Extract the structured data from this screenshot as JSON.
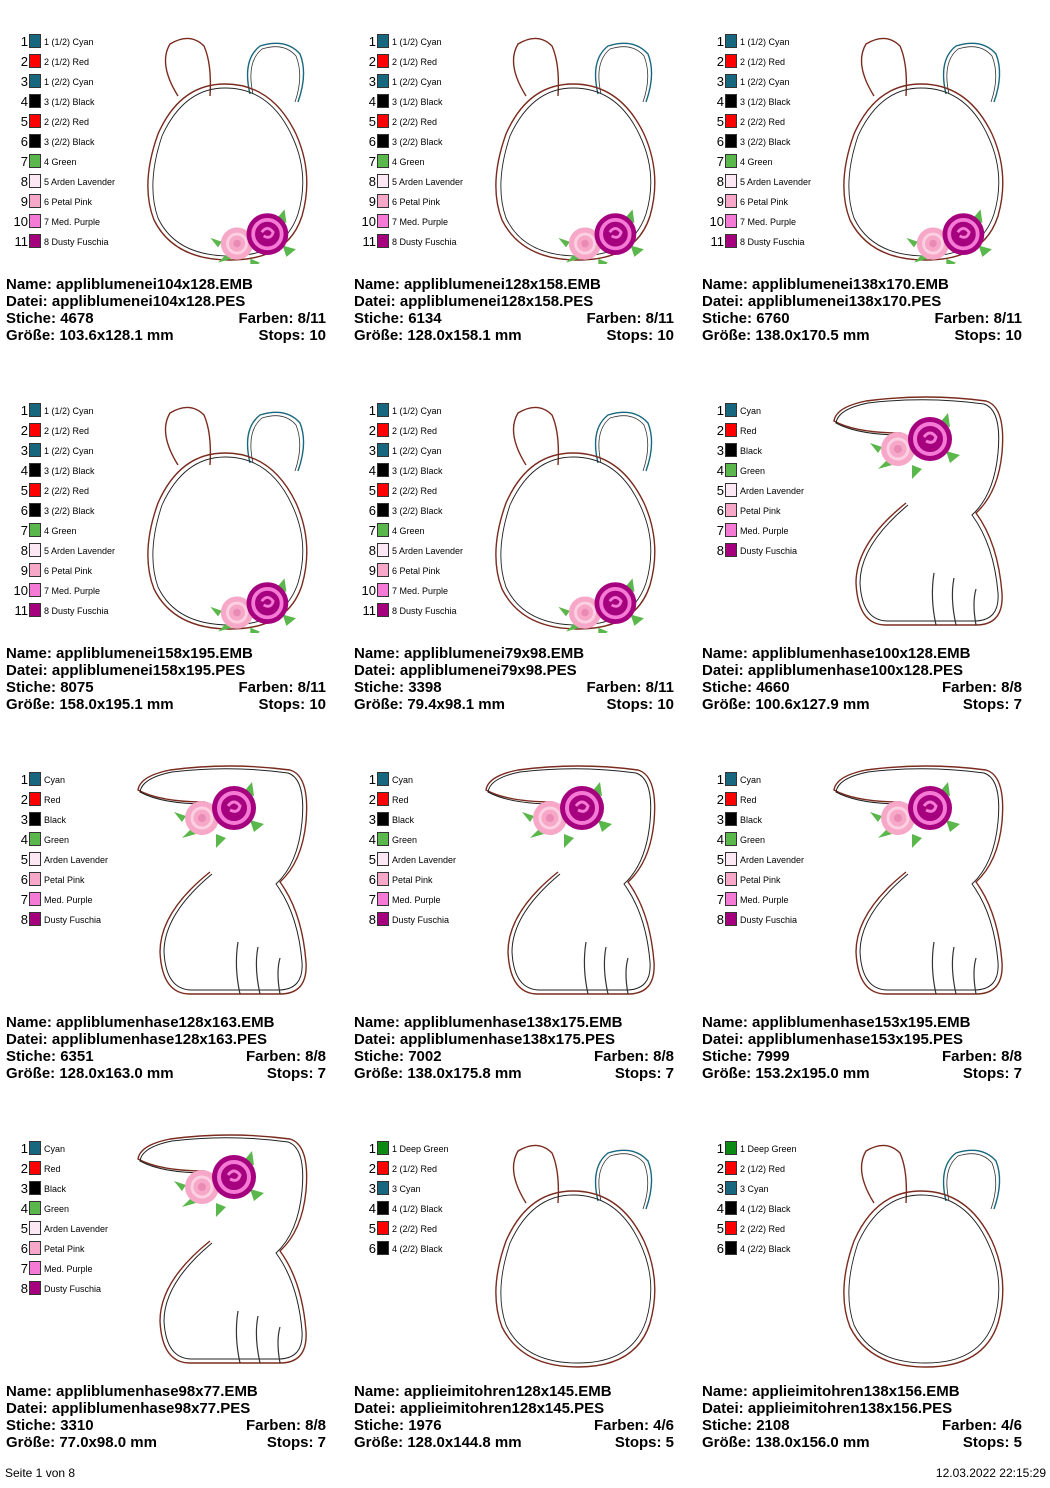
{
  "labels": {
    "name": "Name:",
    "file": "Datei:",
    "stitches": "Stiche:",
    "colors": "Farben:",
    "size": "Größe:",
    "stops": "Stops:"
  },
  "colors": {
    "cyan": "#17687e",
    "red": "#ff0000",
    "black": "#000000",
    "green": "#5ab74b",
    "lavender": "#fbe8f4",
    "pink": "#f7a8c8",
    "purple": "#f47ad6",
    "fuschia": "#a5017f",
    "deepgreen": "#0d8a14"
  },
  "designs": [
    {
      "type": "egg-flower",
      "legend": [
        {
          "n": "1",
          "label": "1 (1/2) Cyan",
          "color": "cyan"
        },
        {
          "n": "2",
          "label": "2 (1/2) Red",
          "color": "red"
        },
        {
          "n": "3",
          "label": "1 (2/2) Cyan",
          "color": "cyan"
        },
        {
          "n": "4",
          "label": "3 (1/2) Black",
          "color": "black"
        },
        {
          "n": "5",
          "label": "2 (2/2) Red",
          "color": "red"
        },
        {
          "n": "6",
          "label": "3 (2/2) Black",
          "color": "black"
        },
        {
          "n": "7",
          "label": "4 Green",
          "color": "green"
        },
        {
          "n": "8",
          "label": "5 Arden Lavender",
          "color": "lavender"
        },
        {
          "n": "9",
          "label": "6 Petal Pink",
          "color": "pink"
        },
        {
          "n": "10",
          "label": "7 Med. Purple",
          "color": "purple"
        },
        {
          "n": "11",
          "label": "8 Dusty Fuschia",
          "color": "fuschia"
        }
      ],
      "name": "appliblumenei104x128.EMB",
      "file": "appliblumenei104x128.PES",
      "stitches": "4678",
      "colors": "8/11",
      "size": "103.6x128.1 mm",
      "stops": "10"
    },
    {
      "type": "egg-flower",
      "legend": [
        {
          "n": "1",
          "label": "1 (1/2) Cyan",
          "color": "cyan"
        },
        {
          "n": "2",
          "label": "2 (1/2) Red",
          "color": "red"
        },
        {
          "n": "3",
          "label": "1 (2/2) Cyan",
          "color": "cyan"
        },
        {
          "n": "4",
          "label": "3 (1/2) Black",
          "color": "black"
        },
        {
          "n": "5",
          "label": "2 (2/2) Red",
          "color": "red"
        },
        {
          "n": "6",
          "label": "3 (2/2) Black",
          "color": "black"
        },
        {
          "n": "7",
          "label": "4 Green",
          "color": "green"
        },
        {
          "n": "8",
          "label": "5 Arden Lavender",
          "color": "lavender"
        },
        {
          "n": "9",
          "label": "6 Petal Pink",
          "color": "pink"
        },
        {
          "n": "10",
          "label": "7 Med. Purple",
          "color": "purple"
        },
        {
          "n": "11",
          "label": "8 Dusty Fuschia",
          "color": "fuschia"
        }
      ],
      "name": "appliblumenei128x158.EMB",
      "file": "appliblumenei128x158.PES",
      "stitches": "6134",
      "colors": "8/11",
      "size": "128.0x158.1 mm",
      "stops": "10"
    },
    {
      "type": "egg-flower",
      "legend": [
        {
          "n": "1",
          "label": "1 (1/2) Cyan",
          "color": "cyan"
        },
        {
          "n": "2",
          "label": "2 (1/2) Red",
          "color": "red"
        },
        {
          "n": "3",
          "label": "1 (2/2) Cyan",
          "color": "cyan"
        },
        {
          "n": "4",
          "label": "3 (1/2) Black",
          "color": "black"
        },
        {
          "n": "5",
          "label": "2 (2/2) Red",
          "color": "red"
        },
        {
          "n": "6",
          "label": "3 (2/2) Black",
          "color": "black"
        },
        {
          "n": "7",
          "label": "4 Green",
          "color": "green"
        },
        {
          "n": "8",
          "label": "5 Arden Lavender",
          "color": "lavender"
        },
        {
          "n": "9",
          "label": "6 Petal Pink",
          "color": "pink"
        },
        {
          "n": "10",
          "label": "7 Med. Purple",
          "color": "purple"
        },
        {
          "n": "11",
          "label": "8 Dusty Fuschia",
          "color": "fuschia"
        }
      ],
      "name": "appliblumenei138x170.EMB",
      "file": "appliblumenei138x170.PES",
      "stitches": "6760",
      "colors": "8/11",
      "size": "138.0x170.5 mm",
      "stops": "10"
    },
    {
      "type": "egg-flower",
      "legend": [
        {
          "n": "1",
          "label": "1 (1/2) Cyan",
          "color": "cyan"
        },
        {
          "n": "2",
          "label": "2 (1/2) Red",
          "color": "red"
        },
        {
          "n": "3",
          "label": "1 (2/2) Cyan",
          "color": "cyan"
        },
        {
          "n": "4",
          "label": "3 (1/2) Black",
          "color": "black"
        },
        {
          "n": "5",
          "label": "2 (2/2) Red",
          "color": "red"
        },
        {
          "n": "6",
          "label": "3 (2/2) Black",
          "color": "black"
        },
        {
          "n": "7",
          "label": "4 Green",
          "color": "green"
        },
        {
          "n": "8",
          "label": "5 Arden Lavender",
          "color": "lavender"
        },
        {
          "n": "9",
          "label": "6 Petal Pink",
          "color": "pink"
        },
        {
          "n": "10",
          "label": "7 Med. Purple",
          "color": "purple"
        },
        {
          "n": "11",
          "label": "8 Dusty Fuschia",
          "color": "fuschia"
        }
      ],
      "name": "appliblumenei158x195.EMB",
      "file": "appliblumenei158x195.PES",
      "stitches": "8075",
      "colors": "8/11",
      "size": "158.0x195.1 mm",
      "stops": "10"
    },
    {
      "type": "egg-flower",
      "legend": [
        {
          "n": "1",
          "label": "1 (1/2) Cyan",
          "color": "cyan"
        },
        {
          "n": "2",
          "label": "2 (1/2) Red",
          "color": "red"
        },
        {
          "n": "3",
          "label": "1 (2/2) Cyan",
          "color": "cyan"
        },
        {
          "n": "4",
          "label": "3 (1/2) Black",
          "color": "black"
        },
        {
          "n": "5",
          "label": "2 (2/2) Red",
          "color": "red"
        },
        {
          "n": "6",
          "label": "3 (2/2) Black",
          "color": "black"
        },
        {
          "n": "7",
          "label": "4 Green",
          "color": "green"
        },
        {
          "n": "8",
          "label": "5 Arden Lavender",
          "color": "lavender"
        },
        {
          "n": "9",
          "label": "6 Petal Pink",
          "color": "pink"
        },
        {
          "n": "10",
          "label": "7 Med. Purple",
          "color": "purple"
        },
        {
          "n": "11",
          "label": "8 Dusty Fuschia",
          "color": "fuschia"
        }
      ],
      "name": "appliblumenei79x98.EMB",
      "file": "appliblumenei79x98.PES",
      "stitches": "3398",
      "colors": "8/11",
      "size": "79.4x98.1 mm",
      "stops": "10"
    },
    {
      "type": "bunny",
      "legend": [
        {
          "n": "1",
          "label": "Cyan",
          "color": "cyan"
        },
        {
          "n": "2",
          "label": "Red",
          "color": "red"
        },
        {
          "n": "3",
          "label": "Black",
          "color": "black"
        },
        {
          "n": "4",
          "label": "Green",
          "color": "green"
        },
        {
          "n": "5",
          "label": "Arden Lavender",
          "color": "lavender"
        },
        {
          "n": "6",
          "label": "Petal Pink",
          "color": "pink"
        },
        {
          "n": "7",
          "label": "Med. Purple",
          "color": "purple"
        },
        {
          "n": "8",
          "label": "Dusty Fuschia",
          "color": "fuschia"
        }
      ],
      "name": "appliblumenhase100x128.EMB",
      "file": "appliblumenhase100x128.PES",
      "stitches": "4660",
      "colors": "8/8",
      "size": "100.6x127.9 mm",
      "stops": "7"
    },
    {
      "type": "bunny",
      "legend": [
        {
          "n": "1",
          "label": "Cyan",
          "color": "cyan"
        },
        {
          "n": "2",
          "label": "Red",
          "color": "red"
        },
        {
          "n": "3",
          "label": "Black",
          "color": "black"
        },
        {
          "n": "4",
          "label": "Green",
          "color": "green"
        },
        {
          "n": "5",
          "label": "Arden Lavender",
          "color": "lavender"
        },
        {
          "n": "6",
          "label": "Petal Pink",
          "color": "pink"
        },
        {
          "n": "7",
          "label": "Med. Purple",
          "color": "purple"
        },
        {
          "n": "8",
          "label": "Dusty Fuschia",
          "color": "fuschia"
        }
      ],
      "name": "appliblumenhase128x163.EMB",
      "file": "appliblumenhase128x163.PES",
      "stitches": "6351",
      "colors": "8/8",
      "size": "128.0x163.0 mm",
      "stops": "7"
    },
    {
      "type": "bunny",
      "legend": [
        {
          "n": "1",
          "label": "Cyan",
          "color": "cyan"
        },
        {
          "n": "2",
          "label": "Red",
          "color": "red"
        },
        {
          "n": "3",
          "label": "Black",
          "color": "black"
        },
        {
          "n": "4",
          "label": "Green",
          "color": "green"
        },
        {
          "n": "5",
          "label": "Arden Lavender",
          "color": "lavender"
        },
        {
          "n": "6",
          "label": "Petal Pink",
          "color": "pink"
        },
        {
          "n": "7",
          "label": "Med. Purple",
          "color": "purple"
        },
        {
          "n": "8",
          "label": "Dusty Fuschia",
          "color": "fuschia"
        }
      ],
      "name": "appliblumenhase138x175.EMB",
      "file": "appliblumenhase138x175.PES",
      "stitches": "7002",
      "colors": "8/8",
      "size": "138.0x175.8 mm",
      "stops": "7"
    },
    {
      "type": "bunny",
      "legend": [
        {
          "n": "1",
          "label": "Cyan",
          "color": "cyan"
        },
        {
          "n": "2",
          "label": "Red",
          "color": "red"
        },
        {
          "n": "3",
          "label": "Black",
          "color": "black"
        },
        {
          "n": "4",
          "label": "Green",
          "color": "green"
        },
        {
          "n": "5",
          "label": "Arden Lavender",
          "color": "lavender"
        },
        {
          "n": "6",
          "label": "Petal Pink",
          "color": "pink"
        },
        {
          "n": "7",
          "label": "Med. Purple",
          "color": "purple"
        },
        {
          "n": "8",
          "label": "Dusty Fuschia",
          "color": "fuschia"
        }
      ],
      "name": "appliblumenhase153x195.EMB",
      "file": "appliblumenhase153x195.PES",
      "stitches": "7999",
      "colors": "8/8",
      "size": "153.2x195.0 mm",
      "stops": "7"
    },
    {
      "type": "bunny",
      "legend": [
        {
          "n": "1",
          "label": "Cyan",
          "color": "cyan"
        },
        {
          "n": "2",
          "label": "Red",
          "color": "red"
        },
        {
          "n": "3",
          "label": "Black",
          "color": "black"
        },
        {
          "n": "4",
          "label": "Green",
          "color": "green"
        },
        {
          "n": "5",
          "label": "Arden Lavender",
          "color": "lavender"
        },
        {
          "n": "6",
          "label": "Petal Pink",
          "color": "pink"
        },
        {
          "n": "7",
          "label": "Med. Purple",
          "color": "purple"
        },
        {
          "n": "8",
          "label": "Dusty Fuschia",
          "color": "fuschia"
        }
      ],
      "name": "appliblumenhase98x77.EMB",
      "file": "appliblumenhase98x77.PES",
      "stitches": "3310",
      "colors": "8/8",
      "size": "77.0x98.0 mm",
      "stops": "7"
    },
    {
      "type": "egg",
      "legend": [
        {
          "n": "1",
          "label": "1 Deep Green",
          "color": "deepgreen"
        },
        {
          "n": "2",
          "label": "2 (1/2) Red",
          "color": "red"
        },
        {
          "n": "3",
          "label": "3 Cyan",
          "color": "cyan"
        },
        {
          "n": "4",
          "label": "4 (1/2) Black",
          "color": "black"
        },
        {
          "n": "5",
          "label": "2 (2/2) Red",
          "color": "red"
        },
        {
          "n": "6",
          "label": "4 (2/2) Black",
          "color": "black"
        }
      ],
      "name": "applieimitohren128x145.EMB",
      "file": "applieimitohren128x145.PES",
      "stitches": "1976",
      "colors": "4/6",
      "size": "128.0x144.8 mm",
      "stops": "5"
    },
    {
      "type": "egg",
      "legend": [
        {
          "n": "1",
          "label": "1 Deep Green",
          "color": "deepgreen"
        },
        {
          "n": "2",
          "label": "2 (1/2) Red",
          "color": "red"
        },
        {
          "n": "3",
          "label": "3 Cyan",
          "color": "cyan"
        },
        {
          "n": "4",
          "label": "4 (1/2) Black",
          "color": "black"
        },
        {
          "n": "5",
          "label": "2 (2/2) Red",
          "color": "red"
        },
        {
          "n": "6",
          "label": "4 (2/2) Black",
          "color": "black"
        }
      ],
      "name": "applieimitohren138x156.EMB",
      "file": "applieimitohren138x156.PES",
      "stitches": "2108",
      "colors": "4/6",
      "size": "138.0x156.0 mm",
      "stops": "5"
    }
  ],
  "footer": {
    "page": "Seite 1 von 8",
    "timestamp": "12.03.2022 22:15:29"
  }
}
